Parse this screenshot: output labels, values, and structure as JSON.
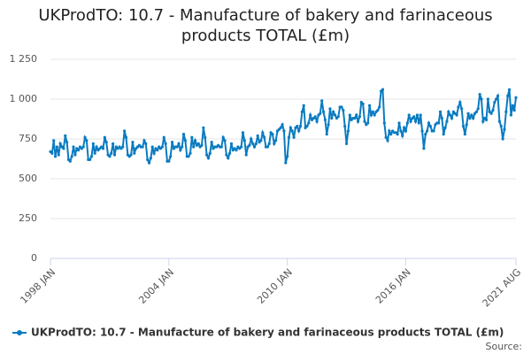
{
  "chart_data": {
    "type": "line",
    "title": "UKProdTO: 10.7 - Manufacture of bakery and farinaceous products TOTAL (£m)",
    "source": "Source:",
    "categories": [
      "1998 JAN",
      null,
      null,
      null,
      null,
      null,
      null,
      null,
      null,
      null,
      null,
      null,
      null,
      null,
      null,
      null,
      null,
      null,
      null,
      null,
      null,
      null,
      null,
      null,
      null,
      null,
      null,
      null,
      null,
      null,
      null,
      null,
      null,
      null,
      null,
      null,
      null,
      null,
      null,
      null,
      null,
      null,
      null,
      null,
      null,
      null,
      null,
      null,
      null,
      null,
      null,
      null,
      null,
      null,
      null,
      null,
      null,
      null,
      null,
      null,
      null,
      null,
      null,
      null,
      null,
      null,
      null,
      null,
      null,
      null,
      null,
      null,
      "2004 JAN",
      null,
      null,
      null,
      null,
      null,
      null,
      null,
      null,
      null,
      null,
      null,
      null,
      null,
      null,
      null,
      null,
      null,
      null,
      null,
      null,
      null,
      null,
      null,
      null,
      null,
      null,
      null,
      null,
      null,
      null,
      null,
      null,
      null,
      null,
      null,
      null,
      null,
      null,
      null,
      null,
      null,
      null,
      null,
      null,
      null,
      null,
      null,
      null,
      null,
      null,
      null,
      null,
      null,
      null,
      null,
      null,
      null,
      null,
      null,
      null,
      null,
      null,
      null,
      null,
      null,
      null,
      null,
      null,
      null,
      null,
      null,
      "2010 JAN",
      null,
      null,
      null,
      null,
      null,
      null,
      null,
      null,
      null,
      null,
      null,
      null,
      null,
      null,
      null,
      null,
      null,
      null,
      null,
      null,
      null,
      null,
      null,
      null,
      null,
      null,
      null,
      null,
      null,
      null,
      null,
      null,
      null,
      null,
      null,
      null,
      null,
      null,
      null,
      null,
      null,
      null,
      null,
      null,
      null,
      null,
      null,
      null,
      null,
      null,
      null,
      null,
      null,
      null,
      null,
      null,
      null,
      null,
      null,
      null,
      null,
      null,
      null,
      null,
      null,
      null,
      null,
      null,
      null,
      null,
      null,
      "2016 JAN",
      null,
      null,
      null,
      null,
      null,
      null,
      null,
      null,
      null,
      null,
      null,
      null,
      null,
      null,
      null,
      null,
      null,
      null,
      null,
      null,
      null,
      null,
      null,
      null,
      null,
      null,
      null,
      null,
      null,
      null,
      null,
      null,
      null,
      null,
      null,
      null,
      null,
      null,
      null,
      null,
      null,
      null,
      null,
      null,
      null,
      null,
      null,
      null,
      null,
      null,
      null,
      null,
      null,
      null,
      null,
      null,
      null,
      null,
      null,
      null,
      null,
      null,
      null,
      null,
      null,
      null,
      "2021 AUG"
    ],
    "series": [
      {
        "name": "UKProdTO: 10.7 - Manufacture of bakery and farinaceous products TOTAL (£m)",
        "color": "#0a7bc1",
        "values": [
          670,
          660,
          740,
          640,
          700,
          650,
          720,
          700,
          690,
          770,
          730,
          620,
          610,
          640,
          700,
          650,
          690,
          680,
          700,
          690,
          700,
          760,
          740,
          620,
          620,
          640,
          720,
          660,
          700,
          680,
          690,
          700,
          690,
          760,
          730,
          650,
          640,
          660,
          720,
          650,
          700,
          690,
          700,
          690,
          700,
          800,
          760,
          650,
          640,
          650,
          730,
          660,
          690,
          700,
          710,
          700,
          700,
          740,
          720,
          620,
          600,
          630,
          700,
          660,
          690,
          680,
          700,
          690,
          700,
          760,
          720,
          610,
          610,
          640,
          730,
          690,
          700,
          700,
          720,
          680,
          700,
          780,
          740,
          640,
          640,
          660,
          760,
          700,
          740,
          710,
          720,
          700,
          710,
          820,
          760,
          650,
          630,
          660,
          730,
          690,
          700,
          700,
          710,
          700,
          700,
          760,
          740,
          650,
          630,
          660,
          720,
          680,
          690,
          680,
          700,
          690,
          700,
          790,
          740,
          650,
          700,
          710,
          750,
          720,
          700,
          720,
          770,
          730,
          740,
          790,
          760,
          700,
          700,
          720,
          790,
          780,
          720,
          740,
          800,
          810,
          820,
          840,
          800,
          600,
          640,
          760,
          820,
          800,
          760,
          820,
          830,
          800,
          830,
          920,
          960,
          820,
          830,
          850,
          900,
          870,
          880,
          890,
          860,
          900,
          910,
          990,
          920,
          870,
          780,
          840,
          940,
          880,
          920,
          900,
          880,
          890,
          950,
          950,
          930,
          830,
          720,
          800,
          900,
          870,
          880,
          880,
          900,
          860,
          890,
          980,
          970,
          860,
          840,
          850,
          960,
          900,
          920,
          900,
          920,
          930,
          950,
          1050,
          1060,
          850,
          760,
          740,
          800,
          780,
          800,
          790,
          790,
          780,
          850,
          800,
          770,
          820,
          800,
          850,
          900,
          860,
          880,
          890,
          860,
          900,
          850,
          900,
          800,
          690,
          780,
          800,
          850,
          830,
          800,
          800,
          840,
          850,
          850,
          920,
          880,
          780,
          820,
          860,
          920,
          900,
          880,
          920,
          910,
          900,
          950,
          980,
          940,
          830,
          780,
          840,
          910,
          880,
          900,
          880,
          910,
          920,
          940,
          1030,
          1000,
          860,
          880,
          870,
          1000,
          920,
          910,
          930,
          980,
          1000,
          1020,
          860,
          830,
          750,
          810,
          920,
          1020,
          1060,
          900,
          960,
          930,
          1010
        ]
      }
    ],
    "ylim": [
      0,
      1250
    ],
    "yticks": [
      0,
      250,
      500,
      750,
      {
        "value": 1000,
        "label": "1 000"
      },
      {
        "value": 1250,
        "label": "1 250"
      }
    ],
    "grid": true,
    "legend": "bottom"
  }
}
